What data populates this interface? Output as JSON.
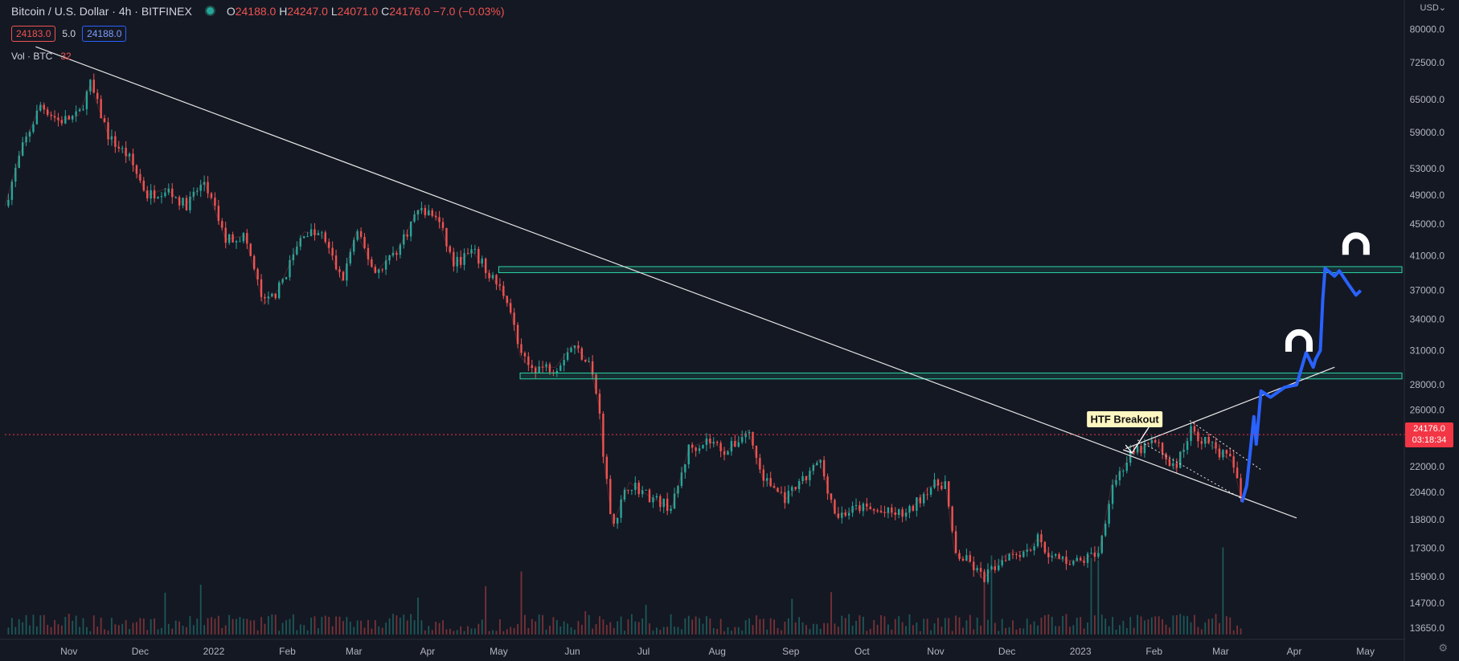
{
  "header": {
    "title": "Bitcoin / U.S. Dollar · 4h · BITFINEX",
    "ohlc": {
      "o_label": "O",
      "o": "24188.0",
      "h_label": "H",
      "h": "24247.0",
      "l_label": "L",
      "l": "24071.0",
      "c_label": "C",
      "c": "24176.0",
      "change": "−7.0 (−0.03%)"
    },
    "sell_price": "24183.0",
    "spread": "5.0",
    "buy_price": "24188.0",
    "volume_label": "Vol · BTC",
    "volume_value": "32",
    "currency": "USD"
  },
  "price_badge": {
    "price": "24176.0",
    "countdown": "03:18:34"
  },
  "annotation": {
    "text": "HTF Breakout"
  },
  "colors": {
    "background": "#141823",
    "bull": "#26a69a",
    "bear": "#ef5350",
    "projection": "#2962ff",
    "zone": "#2bd4a4",
    "trendline": "#e6e6e6",
    "price_line": "#f23645"
  },
  "chart_data": {
    "type": "line",
    "log_scale": true,
    "grid": false,
    "x_tick_labels": [
      "Nov",
      "Dec",
      "2022",
      "Feb",
      "Mar",
      "Apr",
      "May",
      "Jun",
      "Jul",
      "Aug",
      "Sep",
      "Oct",
      "Nov",
      "Dec",
      "2023",
      "Feb",
      "Mar",
      "Apr",
      "May"
    ],
    "x_tick_dates": [
      "2021-11-01",
      "2021-12-01",
      "2022-01-01",
      "2022-02-01",
      "2022-03-01",
      "2022-04-01",
      "2022-05-01",
      "2022-06-01",
      "2022-07-01",
      "2022-08-01",
      "2022-09-01",
      "2022-10-01",
      "2022-11-01",
      "2022-12-01",
      "2023-01-01",
      "2023-02-01",
      "2023-03-01",
      "2023-04-01",
      "2023-05-01"
    ],
    "y_ticks": [
      80000,
      72500,
      65000,
      59000,
      53000,
      49000,
      45000,
      41000,
      37000,
      34000,
      31000,
      28000,
      26000,
      22000,
      20400,
      18800,
      17300,
      15900,
      14700,
      13650
    ],
    "y_tick_labels": [
      "80000.0",
      "72500.0",
      "65000.0",
      "59000.0",
      "53000.0",
      "49000.0",
      "45000.0",
      "41000.0",
      "37000.0",
      "34000.0",
      "31000.0",
      "28000.0",
      "26000.0",
      "22000.0",
      "20400.0",
      "18800.0",
      "17300.0",
      "15900.0",
      "14700.0",
      "13650.0"
    ],
    "ylim": [
      13400,
      86000
    ],
    "xlim": [
      "2021-10-05",
      "2023-05-15"
    ],
    "series": [
      {
        "role": "price",
        "points": [
          [
            "2021-10-05",
            47500
          ],
          [
            "2021-10-12",
            56000
          ],
          [
            "2021-10-20",
            64000
          ],
          [
            "2021-10-28",
            61000
          ],
          [
            "2021-11-05",
            62000
          ],
          [
            "2021-11-10",
            68000
          ],
          [
            "2021-11-18",
            58000
          ],
          [
            "2021-11-26",
            55000
          ],
          [
            "2021-12-04",
            49000
          ],
          [
            "2021-12-12",
            50000
          ],
          [
            "2021-12-20",
            47500
          ],
          [
            "2021-12-28",
            51000
          ],
          [
            "2022-01-06",
            43000
          ],
          [
            "2022-01-14",
            43500
          ],
          [
            "2022-01-22",
            35500
          ],
          [
            "2022-01-28",
            37000
          ],
          [
            "2022-02-08",
            44000
          ],
          [
            "2022-02-16",
            43500
          ],
          [
            "2022-02-24",
            38000
          ],
          [
            "2022-03-02",
            44000
          ],
          [
            "2022-03-10",
            39000
          ],
          [
            "2022-03-20",
            42000
          ],
          [
            "2022-03-28",
            47000
          ],
          [
            "2022-04-05",
            46000
          ],
          [
            "2022-04-12",
            40000
          ],
          [
            "2022-04-20",
            41500
          ],
          [
            "2022-04-28",
            38500
          ],
          [
            "2022-05-05",
            36000
          ],
          [
            "2022-05-10",
            30500
          ],
          [
            "2022-05-14",
            29500
          ],
          [
            "2022-05-25",
            29500
          ],
          [
            "2022-06-01",
            31500
          ],
          [
            "2022-06-08",
            30000
          ],
          [
            "2022-06-12",
            26500
          ],
          [
            "2022-06-15",
            21500
          ],
          [
            "2022-06-18",
            18500
          ],
          [
            "2022-06-25",
            21000
          ],
          [
            "2022-07-05",
            20000
          ],
          [
            "2022-07-13",
            19500
          ],
          [
            "2022-07-20",
            23200
          ],
          [
            "2022-07-28",
            23800
          ],
          [
            "2022-08-05",
            23000
          ],
          [
            "2022-08-14",
            24500
          ],
          [
            "2022-08-20",
            21300
          ],
          [
            "2022-08-30",
            20000
          ],
          [
            "2022-09-09",
            21500
          ],
          [
            "2022-09-13",
            22500
          ],
          [
            "2022-09-20",
            19000
          ],
          [
            "2022-09-30",
            19500
          ],
          [
            "2022-10-10",
            19200
          ],
          [
            "2022-10-20",
            19100
          ],
          [
            "2022-10-29",
            20700
          ],
          [
            "2022-11-05",
            21000
          ],
          [
            "2022-11-09",
            17000
          ],
          [
            "2022-11-15",
            16600
          ],
          [
            "2022-11-21",
            15800
          ],
          [
            "2022-12-01",
            17000
          ],
          [
            "2022-12-10",
            17200
          ],
          [
            "2022-12-14",
            17800
          ],
          [
            "2022-12-20",
            16800
          ],
          [
            "2023-01-01",
            16600
          ],
          [
            "2023-01-09",
            17200
          ],
          [
            "2023-01-14",
            20800
          ],
          [
            "2023-01-22",
            22700
          ],
          [
            "2023-02-01",
            23700
          ],
          [
            "2023-02-10",
            21800
          ],
          [
            "2023-02-16",
            24500
          ],
          [
            "2023-02-26",
            23300
          ],
          [
            "2023-03-06",
            22300
          ],
          [
            "2023-03-10",
            19800
          ]
        ]
      },
      {
        "role": "projection",
        "points": [
          [
            "2023-03-10",
            19800
          ],
          [
            "2023-03-12",
            20800
          ],
          [
            "2023-03-15",
            25500
          ],
          [
            "2023-03-16",
            23500
          ],
          [
            "2023-03-18",
            27500
          ],
          [
            "2023-03-22",
            27000
          ],
          [
            "2023-03-28",
            27800
          ],
          [
            "2023-04-02",
            28000
          ],
          [
            "2023-04-06",
            30800
          ],
          [
            "2023-04-09",
            29500
          ],
          [
            "2023-04-10",
            30200
          ],
          [
            "2023-04-12",
            31000
          ],
          [
            "2023-04-13",
            36000
          ],
          [
            "2023-04-14",
            39500
          ],
          [
            "2023-04-18",
            38600
          ],
          [
            "2023-04-20",
            39200
          ],
          [
            "2023-04-24",
            37600
          ],
          [
            "2023-04-27",
            36500
          ],
          [
            "2023-04-29",
            37000
          ]
        ]
      }
    ],
    "zones": [
      {
        "from": "2022-05-01",
        "to": "2023-05-15",
        "low": 39000,
        "high": 39700
      },
      {
        "from": "2022-05-10",
        "to": "2023-05-15",
        "low": 28500,
        "high": 29000
      }
    ],
    "trendlines": [
      {
        "x1": "2021-10-18",
        "y1": 76000,
        "x2": "2023-04-02",
        "y2": 18900
      },
      {
        "x1": "2023-01-20",
        "y1": 23200,
        "x2": "2023-04-18",
        "y2": 29500
      },
      {
        "x1": "2023-01-25",
        "y1": 23800,
        "x2": "2023-03-10",
        "y2": 20000,
        "dashed": true
      },
      {
        "x1": "2023-02-16",
        "y1": 25200,
        "x2": "2023-03-18",
        "y2": 21800,
        "dashed": true
      }
    ],
    "current_price": 24176,
    "annotations": [
      {
        "text": "HTF Breakout",
        "x": "2023-01-23",
        "y": 25300,
        "target_x": "2023-01-21",
        "target_y": 22900
      }
    ],
    "magnets": [
      {
        "x": "2023-04-03",
        "y": 31700
      },
      {
        "x": "2023-04-27",
        "y": 42200
      }
    ]
  }
}
